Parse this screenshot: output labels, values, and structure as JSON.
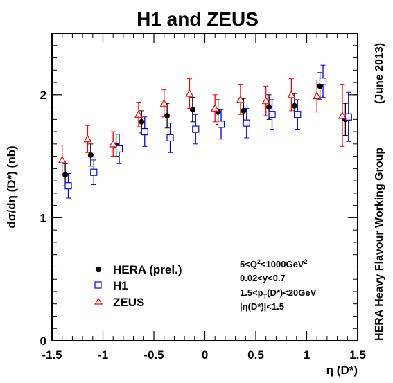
{
  "chart_data": {
    "type": "scatter",
    "title": "H1 and ZEUS",
    "xlabel": "η (D*)",
    "ylabel": "dσ/dη (D*) (nb)",
    "xlim": [
      -1.5,
      1.5
    ],
    "ylim": [
      0,
      2.5
    ],
    "xticks": [
      "-1.5",
      "-1",
      "-0.5",
      "0",
      "0.5",
      "1",
      "1.5"
    ],
    "yticks": [
      "0",
      "1",
      "2"
    ],
    "legend_position": "bottom-left",
    "side_label": "HERA Heavy Flavour Working Group",
    "date_label": "(June 2013)",
    "cuts": [
      "5<Q²<1000GeV²",
      "0.02<y<0.7",
      "1.5<p_T(D*)<20GeV",
      "|η(D*)|<1.5"
    ],
    "series": [
      {
        "name": "HERA (prel.)",
        "marker": "filled-circle",
        "color": "#000000",
        "x": [
          -1.37,
          -1.12,
          -0.87,
          -0.62,
          -0.37,
          -0.12,
          0.13,
          0.38,
          0.63,
          0.88,
          1.13,
          1.38
        ],
        "y": [
          1.35,
          1.51,
          1.59,
          1.78,
          1.83,
          1.88,
          1.86,
          1.87,
          1.9,
          1.91,
          2.07,
          1.8
        ],
        "err": [
          0.09,
          0.09,
          0.09,
          0.09,
          0.1,
          0.1,
          0.1,
          0.1,
          0.1,
          0.1,
          0.11,
          0.13
        ]
      },
      {
        "name": "H1",
        "marker": "open-square",
        "color": "#0000ff",
        "x": [
          -1.34,
          -1.09,
          -0.84,
          -0.59,
          -0.34,
          -0.09,
          0.16,
          0.41,
          0.66,
          0.91,
          1.16,
          1.41
        ],
        "y": [
          1.26,
          1.37,
          1.56,
          1.7,
          1.65,
          1.72,
          1.76,
          1.77,
          1.84,
          1.84,
          2.11,
          1.82
        ],
        "err": [
          0.1,
          0.1,
          0.12,
          0.12,
          0.12,
          0.12,
          0.12,
          0.12,
          0.12,
          0.12,
          0.13,
          0.2
        ]
      },
      {
        "name": "ZEUS",
        "marker": "open-triangle",
        "color": "#ff0000",
        "x": [
          -1.4,
          -1.15,
          -0.9,
          -0.65,
          -0.4,
          -0.15,
          0.1,
          0.35,
          0.6,
          0.85,
          1.1,
          1.35
        ],
        "y": [
          1.47,
          1.64,
          1.6,
          1.84,
          1.93,
          2.01,
          1.89,
          1.96,
          1.95,
          2.0,
          1.99,
          1.83
        ],
        "err": [
          0.12,
          0.11,
          0.1,
          0.1,
          0.11,
          0.12,
          0.11,
          0.12,
          0.12,
          0.13,
          0.13,
          0.25
        ]
      }
    ]
  },
  "legend": {
    "items": [
      {
        "label": "HERA (prel.)"
      },
      {
        "label": "H1"
      },
      {
        "label": "ZEUS"
      }
    ]
  }
}
